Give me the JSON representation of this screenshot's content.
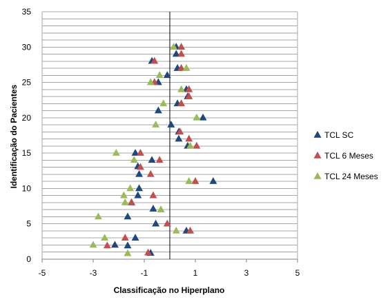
{
  "chart_data": {
    "type": "scatter",
    "title": "",
    "xlabel": "Classificação no Hiperplano",
    "ylabel": "Identificação do Pacientes",
    "xlim": [
      -5,
      5
    ],
    "ylim": [
      0,
      35
    ],
    "x_tick_values": [
      -5,
      -3,
      -1,
      1,
      3,
      5
    ],
    "x_tick_labels": [
      "-5",
      "-3",
      "-1",
      "1",
      "3",
      "5"
    ],
    "y_tick_values": [
      0,
      5,
      10,
      15,
      20,
      25,
      30,
      35
    ],
    "y_tick_labels": [
      "0",
      "5",
      "10",
      "15",
      "20",
      "25",
      "30",
      "35"
    ],
    "grid": "horizontal",
    "legend_position": "right",
    "reference_line_x": 0,
    "series": [
      {
        "name": "TCL SC",
        "color": "#1F497D",
        "marker": "triangle",
        "points": [
          {
            "x": -1.65,
            "y": 1.9
          },
          {
            "x": -0.75,
            "y": 0.85
          },
          {
            "x": -2.15,
            "y": 2.0
          },
          {
            "x": -1.35,
            "y": 3.0
          },
          {
            "x": 0.65,
            "y": 4.0
          },
          {
            "x": -0.55,
            "y": 5.0
          },
          {
            "x": -1.65,
            "y": 6.0
          },
          {
            "x": -0.65,
            "y": 7.1
          },
          {
            "x": -1.5,
            "y": 8.0
          },
          {
            "x": -1.25,
            "y": 9.0
          },
          {
            "x": -1.2,
            "y": 10.0
          },
          {
            "x": 1.7,
            "y": 11.0
          },
          {
            "x": -1.2,
            "y": 12.0
          },
          {
            "x": -1.25,
            "y": 13.1
          },
          {
            "x": -0.7,
            "y": 14.0
          },
          {
            "x": -1.35,
            "y": 15.0
          },
          {
            "x": 0.7,
            "y": 16.0
          },
          {
            "x": 0.35,
            "y": 17.0
          },
          {
            "x": 0.35,
            "y": 18.0
          },
          {
            "x": 0.05,
            "y": 19.0
          },
          {
            "x": 1.3,
            "y": 20.0
          },
          {
            "x": -0.45,
            "y": 21.0
          },
          {
            "x": 0.3,
            "y": 22.0
          },
          {
            "x": 0.7,
            "y": 23.0
          },
          {
            "x": 0.65,
            "y": 24.0
          },
          {
            "x": -0.45,
            "y": 25.0
          },
          {
            "x": -0.1,
            "y": 26.0
          },
          {
            "x": 0.3,
            "y": 27.0
          },
          {
            "x": -0.7,
            "y": 28.0
          },
          {
            "x": 0.25,
            "y": 29.0
          },
          {
            "x": 0.25,
            "y": 30.0
          }
        ]
      },
      {
        "name": "TCL 6 Meses",
        "color": "#C0504D",
        "marker": "triangle",
        "points": [
          {
            "x": -0.85,
            "y": 0.9
          },
          {
            "x": -2.45,
            "y": 1.9
          },
          {
            "x": -1.75,
            "y": 3.0
          },
          {
            "x": 0.8,
            "y": 4.0
          },
          {
            "x": -0.1,
            "y": 5.0
          },
          {
            "x": -1.5,
            "y": 8.0
          },
          {
            "x": -0.65,
            "y": 9.0
          },
          {
            "x": 1.0,
            "y": 11.0
          },
          {
            "x": -0.75,
            "y": 12.0
          },
          {
            "x": -1.15,
            "y": 13.0
          },
          {
            "x": -0.4,
            "y": 14.0
          },
          {
            "x": -1.15,
            "y": 15.0
          },
          {
            "x": 1.05,
            "y": 16.0
          },
          {
            "x": 0.75,
            "y": 17.0
          },
          {
            "x": 0.4,
            "y": 18.0
          },
          {
            "x": 0.45,
            "y": 22.0
          },
          {
            "x": 0.75,
            "y": 23.0
          },
          {
            "x": 0.75,
            "y": 24.0
          },
          {
            "x": -0.6,
            "y": 25.0
          },
          {
            "x": 0.45,
            "y": 27.0
          },
          {
            "x": -0.6,
            "y": 28.0
          },
          {
            "x": 0.45,
            "y": 29.0
          },
          {
            "x": 0.45,
            "y": 30.0
          }
        ]
      },
      {
        "name": "TCL 24 Meses",
        "color": "#9BBB59",
        "marker": "triangle",
        "points": [
          {
            "x": -1.65,
            "y": 0.8
          },
          {
            "x": -3.0,
            "y": 2.0
          },
          {
            "x": -2.55,
            "y": 3.0
          },
          {
            "x": 0.25,
            "y": 4.0
          },
          {
            "x": -2.8,
            "y": 6.0
          },
          {
            "x": -0.35,
            "y": 7.0
          },
          {
            "x": -1.75,
            "y": 8.0
          },
          {
            "x": -1.8,
            "y": 9.0
          },
          {
            "x": -1.55,
            "y": 10.0
          },
          {
            "x": 0.75,
            "y": 11.0
          },
          {
            "x": -1.4,
            "y": 14.0
          },
          {
            "x": -2.1,
            "y": 15.0
          },
          {
            "x": 0.8,
            "y": 16.0
          },
          {
            "x": 1.05,
            "y": 20.0
          },
          {
            "x": -0.55,
            "y": 19.0
          },
          {
            "x": -0.25,
            "y": 22.0
          },
          {
            "x": 0.45,
            "y": 24.0
          },
          {
            "x": -0.75,
            "y": 25.0
          },
          {
            "x": -0.4,
            "y": 26.0
          },
          {
            "x": 0.65,
            "y": 27.0
          },
          {
            "x": 0.15,
            "y": 30.0
          }
        ]
      }
    ]
  }
}
